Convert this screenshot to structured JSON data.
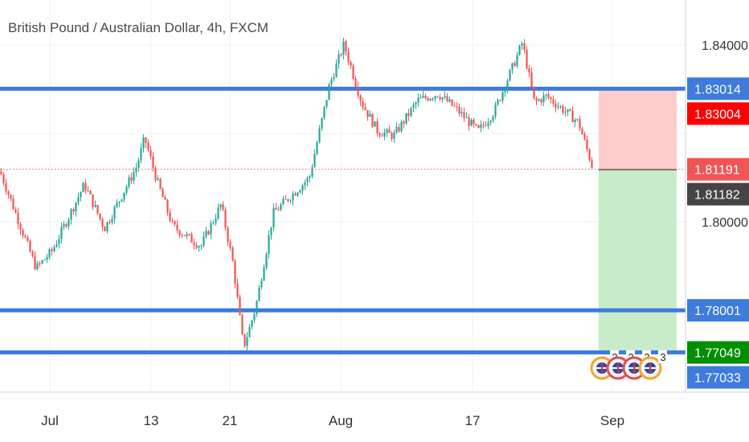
{
  "header": {
    "title": "British Pound / Australian Dollar, 4h, FXCM"
  },
  "chart_data": {
    "type": "candlestick",
    "title": "British Pound / Australian Dollar, 4h, FXCM",
    "ylim": [
      1.7615,
      1.8502
    ],
    "y_ticks": [
      "1.84000",
      "1.80000",
      "1.78000",
      "1.77033"
    ],
    "x_ticks": [
      "Jul",
      "13",
      "21",
      "Aug",
      "17",
      "Sep"
    ],
    "last_price": 1.81191,
    "ohlc_summary": {
      "start": 1.8115,
      "jul_low": 1.7895,
      "jul13_high": 1.819,
      "jul22_low": 1.7716,
      "aug_high": 1.8402,
      "aug20_high": 1.8406,
      "end_close": 1.8119
    },
    "horizontal_levels": [
      {
        "value": 1.83014,
        "label": "1.83014",
        "color": "#3d7bdc"
      },
      {
        "value": 1.78001,
        "label": "1.78001",
        "color": "#3d7bdc"
      },
      {
        "value": 1.77049,
        "label": "1.77049",
        "color": "#3d7bdc"
      }
    ],
    "position_tool": {
      "stop": 1.83004,
      "entry": 1.81182,
      "target": 1.77049,
      "stop_label": "1.83004",
      "entry_label": "1.81182",
      "target_label": "1.77049"
    },
    "price_badges": [
      {
        "value": 1.83014,
        "label": "1.83014",
        "color": "#3d7bdc"
      },
      {
        "value": 1.83004,
        "label": "1.83004",
        "color": "#ff0000"
      },
      {
        "value": 1.81191,
        "label": "1.81191",
        "color": "#ee5555"
      },
      {
        "value": 1.81182,
        "label": "1.81182",
        "color": "#444444"
      },
      {
        "value": 1.78001,
        "label": "1.78001",
        "color": "#3d7bdc"
      },
      {
        "value": 1.77049,
        "label": "1.77049",
        "color": "#008f00"
      },
      {
        "value": 1.77033,
        "label": "1.77033",
        "color": "#3d7bdc"
      }
    ],
    "events": [
      "2",
      "2",
      "3",
      "3"
    ],
    "colors": {
      "up": "#26a69a",
      "down": "#ef5350",
      "level": "#3d7bdc",
      "stop_zone": "#ffcccc",
      "target_zone": "#c8ecc8"
    },
    "grid": true
  }
}
